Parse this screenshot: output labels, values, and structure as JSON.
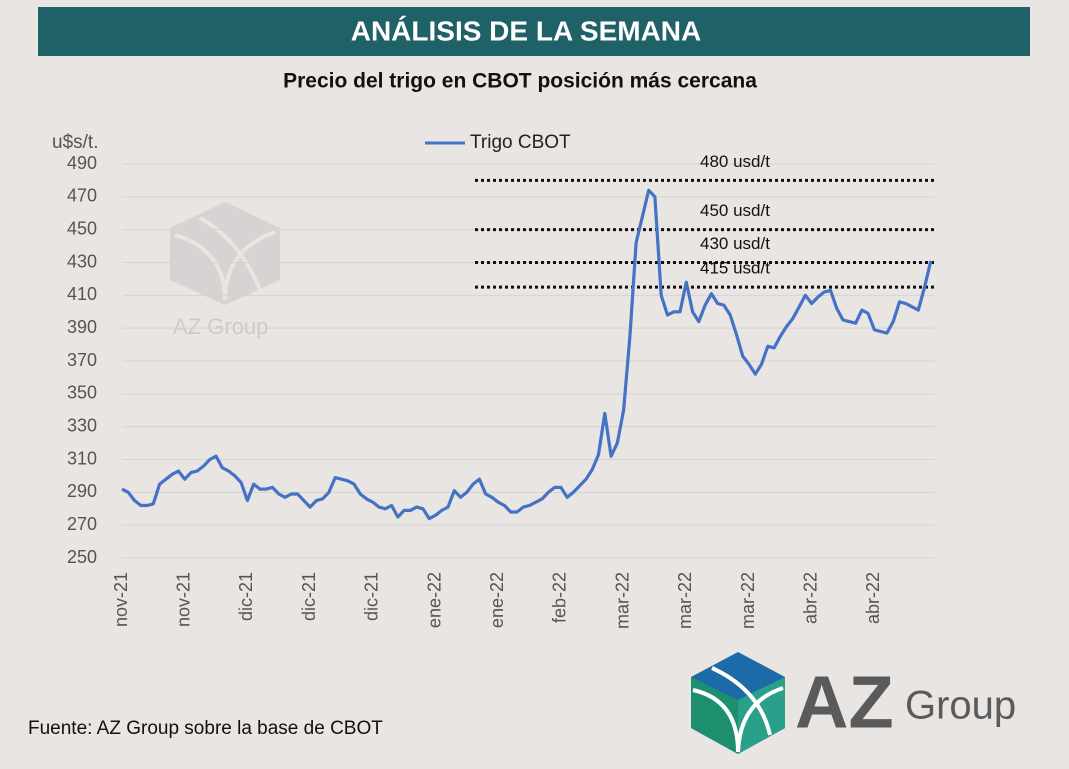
{
  "header": "ANÁLISIS DE LA SEMANA",
  "source": "Fuente: AZ Group sobre la base de CBOT",
  "logo": {
    "az": "AZ",
    "group": "Group"
  },
  "watermark": "AZ Group",
  "chart_data": {
    "type": "line",
    "title": "Precio del trigo en CBOT posición más cercana",
    "y_label": "u$s/t.",
    "legend": "top",
    "grid": true,
    "ylim": [
      250,
      490
    ],
    "yticks": [
      250,
      270,
      290,
      310,
      330,
      350,
      370,
      390,
      410,
      430,
      450,
      470,
      490
    ],
    "categories": [
      "nov-21",
      null,
      null,
      null,
      null,
      null,
      null,
      null,
      null,
      null,
      "nov-21",
      null,
      null,
      null,
      null,
      null,
      null,
      null,
      null,
      null,
      "dic-21",
      null,
      null,
      null,
      null,
      null,
      null,
      null,
      null,
      null,
      "dic-21",
      null,
      null,
      null,
      null,
      null,
      null,
      null,
      null,
      null,
      "dic-21",
      null,
      null,
      null,
      null,
      null,
      null,
      null,
      null,
      null,
      "ene-22",
      null,
      null,
      null,
      null,
      null,
      null,
      null,
      null,
      null,
      "ene-22",
      null,
      null,
      null,
      null,
      null,
      null,
      null,
      null,
      null,
      "feb-22",
      null,
      null,
      null,
      null,
      null,
      null,
      null,
      null,
      null,
      "mar-22",
      null,
      null,
      null,
      null,
      null,
      null,
      null,
      null,
      null,
      "mar-22",
      null,
      null,
      null,
      null,
      null,
      null,
      null,
      null,
      null,
      "mar-22",
      null,
      null,
      null,
      null,
      null,
      null,
      null,
      null,
      null,
      "abr-22",
      null,
      null,
      null,
      null,
      null,
      null,
      null,
      null,
      null,
      "abr-22",
      null,
      null,
      null,
      null,
      null,
      null,
      null,
      null,
      null
    ],
    "series": [
      {
        "name": "Trigo CBOT",
        "color": "#4472c4",
        "values": [
          292,
          290,
          285,
          282,
          282,
          283,
          295,
          298,
          301,
          303,
          298,
          302,
          303,
          306,
          310,
          312,
          305,
          303,
          300,
          296,
          285,
          295,
          292,
          292,
          293,
          289,
          287,
          289,
          289,
          285,
          281,
          285,
          286,
          290,
          299,
          298,
          297,
          295,
          289,
          286,
          284,
          281,
          280,
          282,
          275,
          279,
          279,
          281,
          280,
          274,
          276,
          279,
          281,
          291,
          287,
          290,
          295,
          298,
          289,
          287,
          284,
          282,
          278,
          278,
          281,
          282,
          284,
          286,
          290,
          293,
          293,
          287,
          290,
          294,
          298,
          304,
          313,
          338,
          312,
          320,
          340,
          385,
          442,
          458,
          474,
          470,
          410,
          398,
          400,
          400,
          418,
          400,
          394,
          404,
          411,
          405,
          404,
          398,
          386,
          373,
          368,
          362,
          368,
          379,
          378,
          385,
          391,
          396,
          403,
          410,
          405,
          409,
          412,
          413,
          402,
          395,
          394,
          393,
          401,
          399,
          389,
          388,
          387,
          394,
          406,
          405,
          403,
          401,
          415,
          431
        ]
      }
    ],
    "reference_lines": [
      {
        "value": 480,
        "label": "480 usd/t"
      },
      {
        "value": 450,
        "label": "450 usd/t"
      },
      {
        "value": 430,
        "label": "430 usd/t"
      },
      {
        "value": 415,
        "label": "415 usd/t"
      }
    ]
  }
}
